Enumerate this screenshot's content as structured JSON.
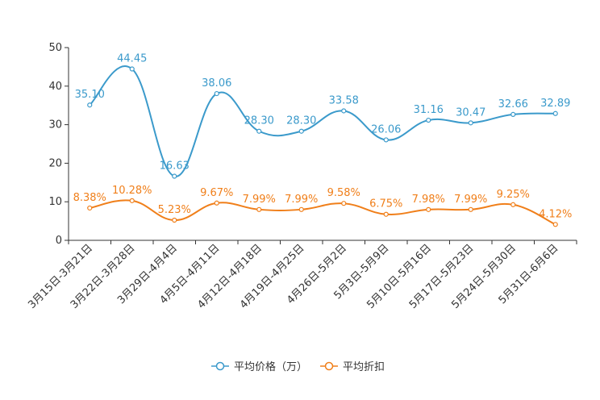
{
  "chart_data": {
    "type": "line",
    "title": "",
    "xlabel": "",
    "ylabel": "",
    "ylim": [
      0,
      50
    ],
    "yticks": [
      0,
      10,
      20,
      30,
      40,
      50
    ],
    "grid": false,
    "legend_position": "bottom",
    "categories": [
      "3月15日-3月21日",
      "3月22日-3月28日",
      "3月29日-4月4日",
      "4月5日-4月11日",
      "4月12日-4月18日",
      "4月19日-4月25日",
      "4月26日-5月2日",
      "5月3日-5月9日",
      "5月10日-5月16日",
      "5月17日-5月23日",
      "5月24日-5月30日",
      "5月31日-6月6日"
    ],
    "series": [
      {
        "name": "平均价格（万）",
        "color": "#3b9acb",
        "values": [
          35.1,
          44.45,
          16.63,
          38.06,
          28.3,
          28.3,
          33.58,
          26.06,
          31.16,
          30.47,
          32.66,
          32.89
        ],
        "labels": [
          "35.10",
          "44.45",
          "16.63",
          "38.06",
          "28.30",
          "28.30",
          "33.58",
          "26.06",
          "31.16",
          "30.47",
          "32.66",
          "32.89"
        ]
      },
      {
        "name": "平均折扣",
        "color": "#f07f1a",
        "values": [
          8.38,
          10.28,
          5.23,
          9.67,
          7.99,
          7.99,
          9.58,
          6.75,
          7.98,
          7.99,
          9.25,
          4.12
        ],
        "labels": [
          "8.38%",
          "10.28%",
          "5.23%",
          "9.67%",
          "7.99%",
          "7.99%",
          "9.58%",
          "6.75%",
          "7.98%",
          "7.99%",
          "9.25%",
          "4.12%"
        ]
      }
    ]
  }
}
